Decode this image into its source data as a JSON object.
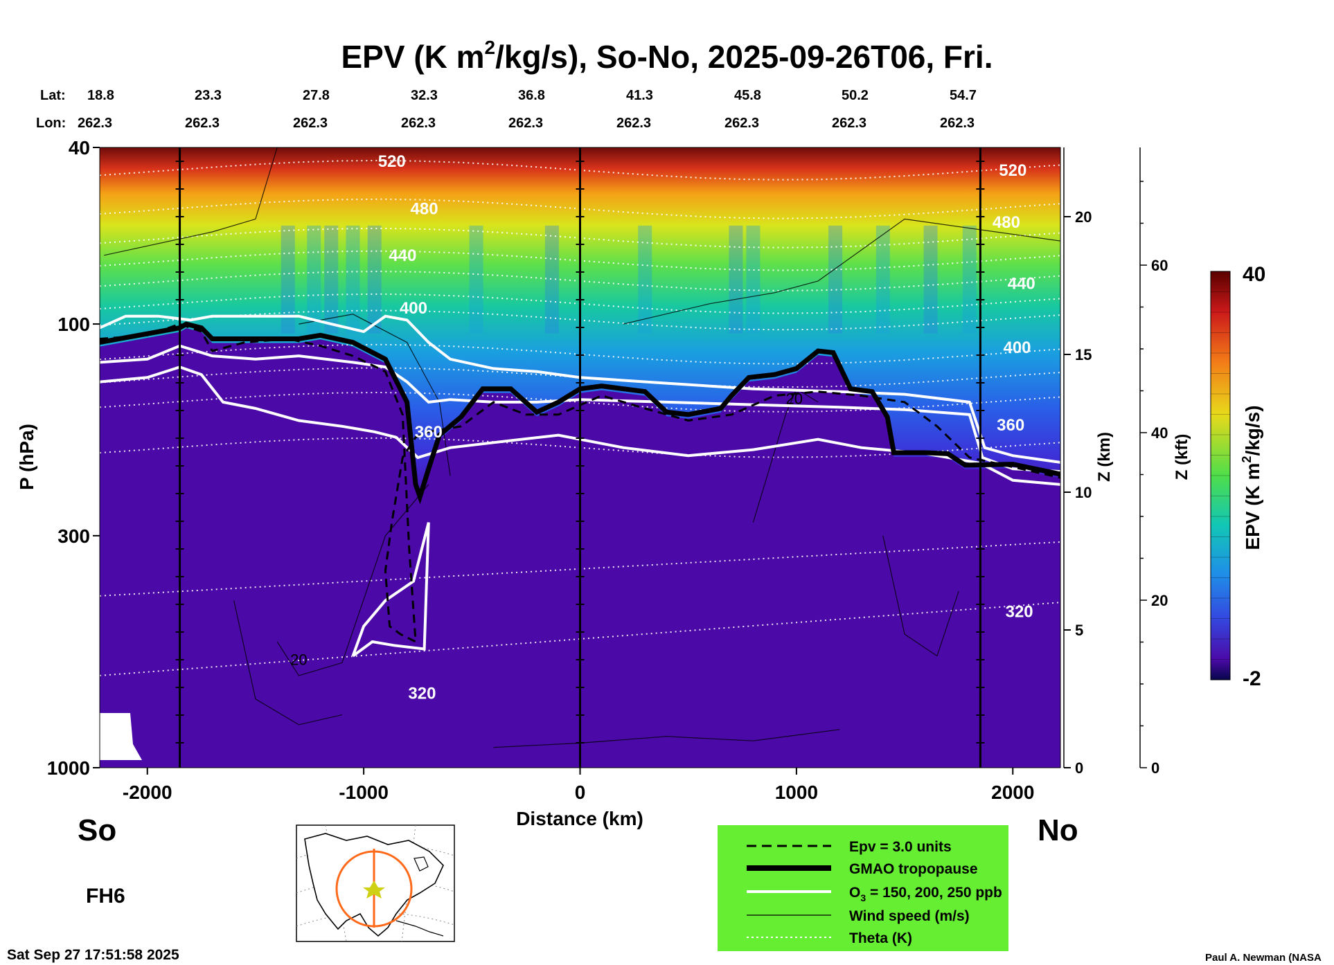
{
  "title_pre": "EPV (K m",
  "title_sup": "2",
  "title_post": "/kg/s), So-No, 2025-09-26T06, Fri.",
  "lat_label": "Lat:",
  "lon_label": "Lon:",
  "lats": [
    "18.8",
    "23.3",
    "27.8",
    "32.3",
    "36.8",
    "41.3",
    "45.8",
    "50.2",
    "54.7"
  ],
  "lons": [
    "262.3",
    "262.3",
    "262.3",
    "262.3",
    "262.3",
    "262.3",
    "262.3",
    "262.3",
    "262.3"
  ],
  "left_end": "So",
  "right_end": "No",
  "forecast_hour": "FH6",
  "timestamp": "Sat Sep 27 17:51:58 2025",
  "credit": "Paul A. Newman (NASA",
  "legend": [
    {
      "label": "Epv = 3.0 units",
      "style": "dashed"
    },
    {
      "label": "GMAO tropopause",
      "style": "thick"
    },
    {
      "label_pre": "O",
      "label_sub": "3",
      "label_post": " = 150, 200, 250 ppb",
      "style": "white"
    },
    {
      "label": "Wind speed (m/s)",
      "style": "thin"
    },
    {
      "label": "Theta (K)",
      "style": "dotted"
    }
  ],
  "colors": {
    "background_epv": "#4b0aa8",
    "legend_box": "#66ee33",
    "map_path": "#ff6a1a",
    "map_marker": "#cfd214"
  },
  "chart_data": {
    "type": "heatmap",
    "xlabel": "Distance (km)",
    "ylabel": "P (hPa)",
    "xlim": [
      -2220,
      2220
    ],
    "ylim": [
      1000,
      40
    ],
    "y_scale": "log",
    "x_ticks": [
      -2000,
      -1000,
      0,
      1000,
      2000
    ],
    "x_tick_labels": [
      "-2000",
      "-1000",
      "0",
      "1000",
      "2000"
    ],
    "y_ticks": [
      40,
      100,
      300,
      1000
    ],
    "y_tick_labels": [
      "40",
      "100",
      "300",
      "1000"
    ],
    "z_km_label": "Z (km)",
    "z_km_ticks": [
      0,
      5,
      10,
      15,
      20
    ],
    "z_km_tick_labels": [
      "0",
      "5",
      "10",
      "15",
      "20"
    ],
    "z_kft_label": "Z (kft)",
    "z_kft_ticks": [
      0,
      20,
      40,
      60
    ],
    "z_kft_tick_labels": [
      "0",
      "20",
      "40",
      "60"
    ],
    "colorbar_label_pre": "EPV (K m",
    "colorbar_label_sup": "2",
    "colorbar_label_post": "/kg/s)",
    "colorbar_range": [
      -2,
      40
    ],
    "colorbar_tick_labels": [
      "40",
      "-2"
    ],
    "vertical_markers_km": [
      -1850,
      0,
      1850
    ],
    "theta_labels": [
      {
        "text": "520",
        "x": -870,
        "p": 43
      },
      {
        "text": "480",
        "x": -720,
        "p": 55
      },
      {
        "text": "440",
        "x": -820,
        "p": 70
      },
      {
        "text": "400",
        "x": -770,
        "p": 92
      },
      {
        "text": "360",
        "x": -700,
        "p": 175
      },
      {
        "text": "320",
        "x": -730,
        "p": 680
      },
      {
        "text": "520",
        "x": 2000,
        "p": 45
      },
      {
        "text": "480",
        "x": 1970,
        "p": 59
      },
      {
        "text": "440",
        "x": 2040,
        "p": 81
      },
      {
        "text": "400",
        "x": 2020,
        "p": 113
      },
      {
        "text": "360",
        "x": 1990,
        "p": 169
      },
      {
        "text": "320",
        "x": 2030,
        "p": 445
      }
    ],
    "wind_labels": [
      {
        "text": "20",
        "x": 990,
        "p": 147
      },
      {
        "text": "20",
        "x": -1300,
        "p": 570
      }
    ],
    "tropopause": [
      [
        -2220,
        110
      ],
      [
        -1850,
        102
      ],
      [
        -1820,
        100
      ],
      [
        -1750,
        102
      ],
      [
        -1700,
        108
      ],
      [
        -1300,
        108
      ],
      [
        -1200,
        106
      ],
      [
        -1050,
        110
      ],
      [
        -900,
        120
      ],
      [
        -800,
        150
      ],
      [
        -760,
        230
      ],
      [
        -740,
        245
      ],
      [
        -700,
        212
      ],
      [
        -650,
        178
      ],
      [
        -550,
        162
      ],
      [
        -450,
        140
      ],
      [
        -320,
        140
      ],
      [
        -200,
        158
      ],
      [
        -100,
        150
      ],
      [
        0,
        140
      ],
      [
        100,
        138
      ],
      [
        200,
        140
      ],
      [
        300,
        142
      ],
      [
        400,
        158
      ],
      [
        500,
        160
      ],
      [
        650,
        155
      ],
      [
        700,
        145
      ],
      [
        780,
        132
      ],
      [
        900,
        130
      ],
      [
        1000,
        126
      ],
      [
        1100,
        115
      ],
      [
        1170,
        116
      ],
      [
        1250,
        140
      ],
      [
        1350,
        142
      ],
      [
        1420,
        162
      ],
      [
        1450,
        195
      ],
      [
        1600,
        195
      ],
      [
        1700,
        196
      ],
      [
        1780,
        208
      ],
      [
        2000,
        207
      ],
      [
        2220,
        218
      ]
    ]
  }
}
